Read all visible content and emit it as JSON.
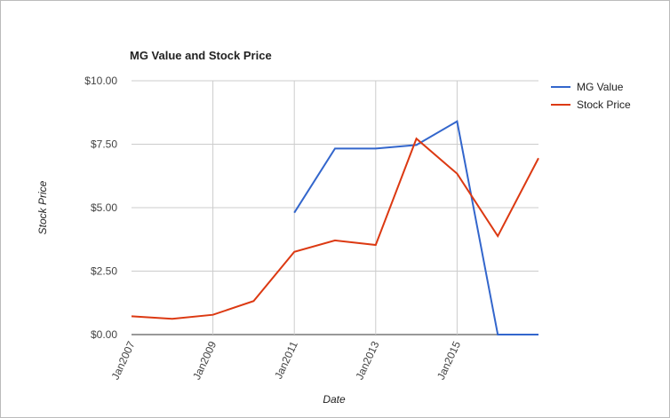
{
  "chart_data": {
    "type": "line",
    "title": "MG Value and Stock Price",
    "x_label": "Date",
    "y_label": "Stock Price",
    "x": [
      2007,
      2008,
      2009,
      2010,
      2011,
      2012,
      2013,
      2014,
      2015,
      2016,
      2017
    ],
    "series": [
      {
        "name": "MG Value",
        "color": "#3366cc",
        "values": [
          null,
          null,
          null,
          null,
          4.8,
          7.33,
          7.33,
          7.47,
          8.4,
          0,
          0
        ]
      },
      {
        "name": "Stock Price",
        "color": "#dc3912",
        "values": [
          0.72,
          0.62,
          0.78,
          1.32,
          3.26,
          3.71,
          3.53,
          7.72,
          6.34,
          3.88,
          6.95
        ]
      }
    ],
    "xlim": [
      2007,
      2017
    ],
    "xticks": [
      {
        "value": 2007,
        "label": "Jan2007"
      },
      {
        "value": 2009,
        "label": "Jan2009"
      },
      {
        "value": 2011,
        "label": "Jan2011"
      },
      {
        "value": 2013,
        "label": "Jan2013"
      },
      {
        "value": 2015,
        "label": "Jan2015"
      }
    ],
    "ylim": [
      0,
      10
    ],
    "yticks": [
      {
        "value": 0,
        "label": "$0.00"
      },
      {
        "value": 2.5,
        "label": "$2.50"
      },
      {
        "value": 5,
        "label": "$5.00"
      },
      {
        "value": 7.5,
        "label": "$7.50"
      },
      {
        "value": 10,
        "label": "$10.00"
      }
    ],
    "grid": true,
    "legend": "right"
  }
}
